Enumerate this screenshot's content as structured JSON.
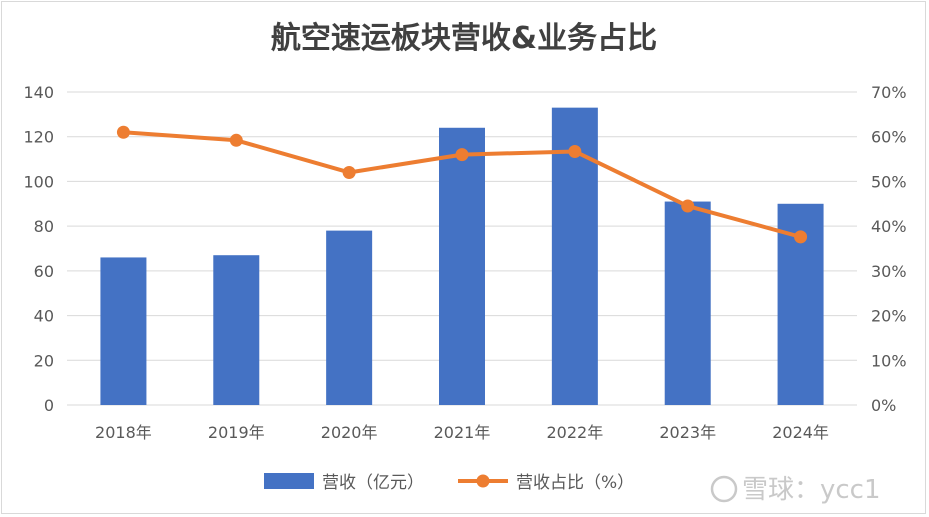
{
  "chart_data": {
    "type": "bar",
    "title": "航空速运板块营收&业务占比",
    "categories": [
      "2018年",
      "2019年",
      "2020年",
      "2021年",
      "2022年",
      "2023年",
      "2024年"
    ],
    "series": [
      {
        "name": "营收（亿元）",
        "type": "bar",
        "axis": "left",
        "color": "#4472C4",
        "values": [
          66,
          67,
          78,
          124,
          133,
          91,
          90
        ]
      },
      {
        "name": "营收占比（%）",
        "type": "line",
        "axis": "right",
        "color": "#ED7D31",
        "values": [
          61,
          59.2,
          52,
          56,
          56.7,
          44.5,
          37.6
        ]
      }
    ],
    "y_left": {
      "min": 0,
      "max": 140,
      "ticks": [
        "0",
        "20",
        "40",
        "60",
        "80",
        "100",
        "120",
        "140"
      ]
    },
    "y_right": {
      "min": 0,
      "max": 70,
      "ticks": [
        "0%",
        "10%",
        "20%",
        "30%",
        "40%",
        "50%",
        "60%",
        "70%"
      ]
    },
    "grid": true,
    "legend": "bottom"
  },
  "watermark": {
    "text": "雪球：ycc1"
  }
}
